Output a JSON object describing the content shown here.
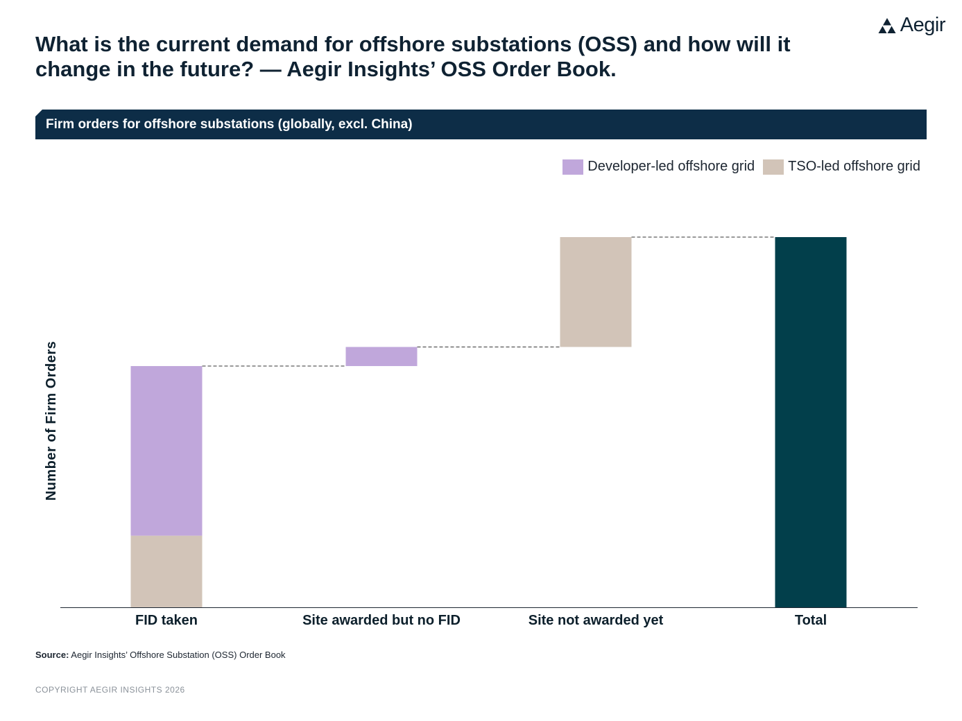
{
  "brand": {
    "name": "Aegir",
    "logo_icon": "aegir-triangles-logo"
  },
  "title": "What is the current demand for offshore substations (OSS) and how will it change in the future? — Aegir Insights’ OSS Order Book.",
  "banner": "Firm orders for offshore substations (globally, excl. China)",
  "colors": {
    "developer": "#c0a7db",
    "tso": "#d2c4b8",
    "total": "#023f4b",
    "banner": "#0d2d47",
    "connector": "#333333"
  },
  "chart_data": {
    "type": "bar",
    "subtype": "waterfall",
    "categories": [
      "FID taken",
      "Site awarded but no FID",
      "Site not awarded yet",
      "Total"
    ],
    "series": [
      {
        "name": "Developer-led offshore grid",
        "color_key": "developer",
        "values": [
          71,
          8,
          0,
          null
        ]
      },
      {
        "name": "TSO-led offshore grid",
        "color_key": "tso",
        "values": [
          30,
          0,
          46,
          null
        ]
      }
    ],
    "total": 155,
    "title": "Firm orders for offshore substations (globally, excl. China)",
    "xlabel": "",
    "ylabel": "Number of Firm Orders",
    "ylim": [
      0,
      155
    ],
    "grid": false,
    "legend": "top-right",
    "connectors": "dashed"
  },
  "footer": {
    "source_label": "Source:",
    "source_text": " Aegir Insights’ Offshore Substation (OSS) Order Book",
    "copyright": "COPYRIGHT AEGIR INSIGHTS 2026"
  }
}
